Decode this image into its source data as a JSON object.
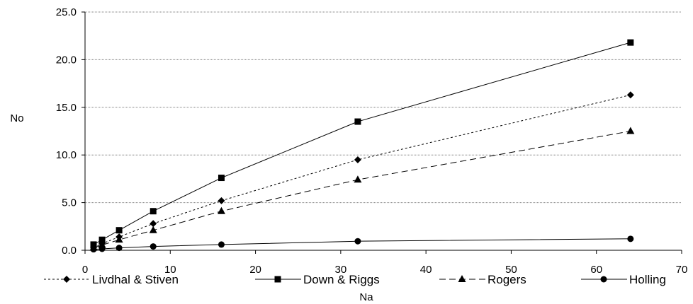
{
  "chart_data": {
    "type": "line",
    "xlabel": "Na",
    "ylabel": "No",
    "xlim": [
      0,
      70
    ],
    "ylim": [
      0,
      25
    ],
    "xticks": [
      "0",
      "10",
      "20",
      "30",
      "40",
      "50",
      "60",
      "70"
    ],
    "yticks": [
      "0.0",
      "5.0",
      "10.0",
      "15.0",
      "20.0",
      "25.0"
    ],
    "grid": "horizontal",
    "legend": "bottom",
    "series": [
      {
        "name": "Livdhal & Stiven",
        "marker": "diamond",
        "dash": "dotted",
        "x": [
          1,
          2,
          4,
          8,
          16,
          32,
          64
        ],
        "y": [
          0.3,
          0.7,
          1.4,
          2.8,
          5.2,
          9.5,
          16.3
        ]
      },
      {
        "name": "Down & Riggs",
        "marker": "square",
        "dash": "solid",
        "x": [
          1,
          2,
          4,
          8,
          16,
          32,
          64
        ],
        "y": [
          0.6,
          1.1,
          2.1,
          4.1,
          7.6,
          13.5,
          21.8
        ]
      },
      {
        "name": "Rogers",
        "marker": "triangle",
        "dash": "dashed",
        "x": [
          1,
          2,
          4,
          8,
          16,
          32,
          64
        ],
        "y": [
          0.25,
          0.55,
          1.1,
          2.1,
          4.1,
          7.4,
          12.5
        ]
      },
      {
        "name": "Holling",
        "marker": "circle",
        "dash": "solid",
        "x": [
          1,
          2,
          4,
          8,
          16,
          32,
          64
        ],
        "y": [
          0.1,
          0.15,
          0.25,
          0.4,
          0.6,
          0.95,
          1.2
        ]
      }
    ]
  }
}
